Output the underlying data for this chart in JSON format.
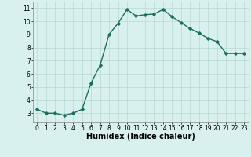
{
  "x": [
    0,
    1,
    2,
    3,
    4,
    5,
    6,
    7,
    8,
    9,
    10,
    11,
    12,
    13,
    14,
    15,
    16,
    17,
    18,
    19,
    20,
    21,
    22,
    23
  ],
  "y": [
    3.3,
    3.0,
    3.0,
    2.85,
    3.0,
    3.3,
    5.3,
    6.65,
    9.0,
    9.85,
    10.9,
    10.4,
    10.5,
    10.55,
    10.9,
    10.35,
    9.9,
    9.45,
    9.1,
    8.7,
    8.45,
    7.55,
    7.55,
    7.55
  ],
  "xlabel": "Humidex (Indice chaleur)",
  "xlim": [
    -0.5,
    23.5
  ],
  "ylim": [
    2.3,
    11.5
  ],
  "yticks": [
    3,
    4,
    5,
    6,
    7,
    8,
    9,
    10,
    11
  ],
  "xticks": [
    0,
    1,
    2,
    3,
    4,
    5,
    6,
    7,
    8,
    9,
    10,
    11,
    12,
    13,
    14,
    15,
    16,
    17,
    18,
    19,
    20,
    21,
    22,
    23
  ],
  "line_color": "#1e6e5e",
  "marker": "D",
  "marker_size": 1.8,
  "bg_color": "#d8f0ee",
  "grid_color": "#b8d8d4",
  "line_width": 1.0,
  "tick_fontsize": 5.5,
  "xlabel_fontsize": 7.0
}
